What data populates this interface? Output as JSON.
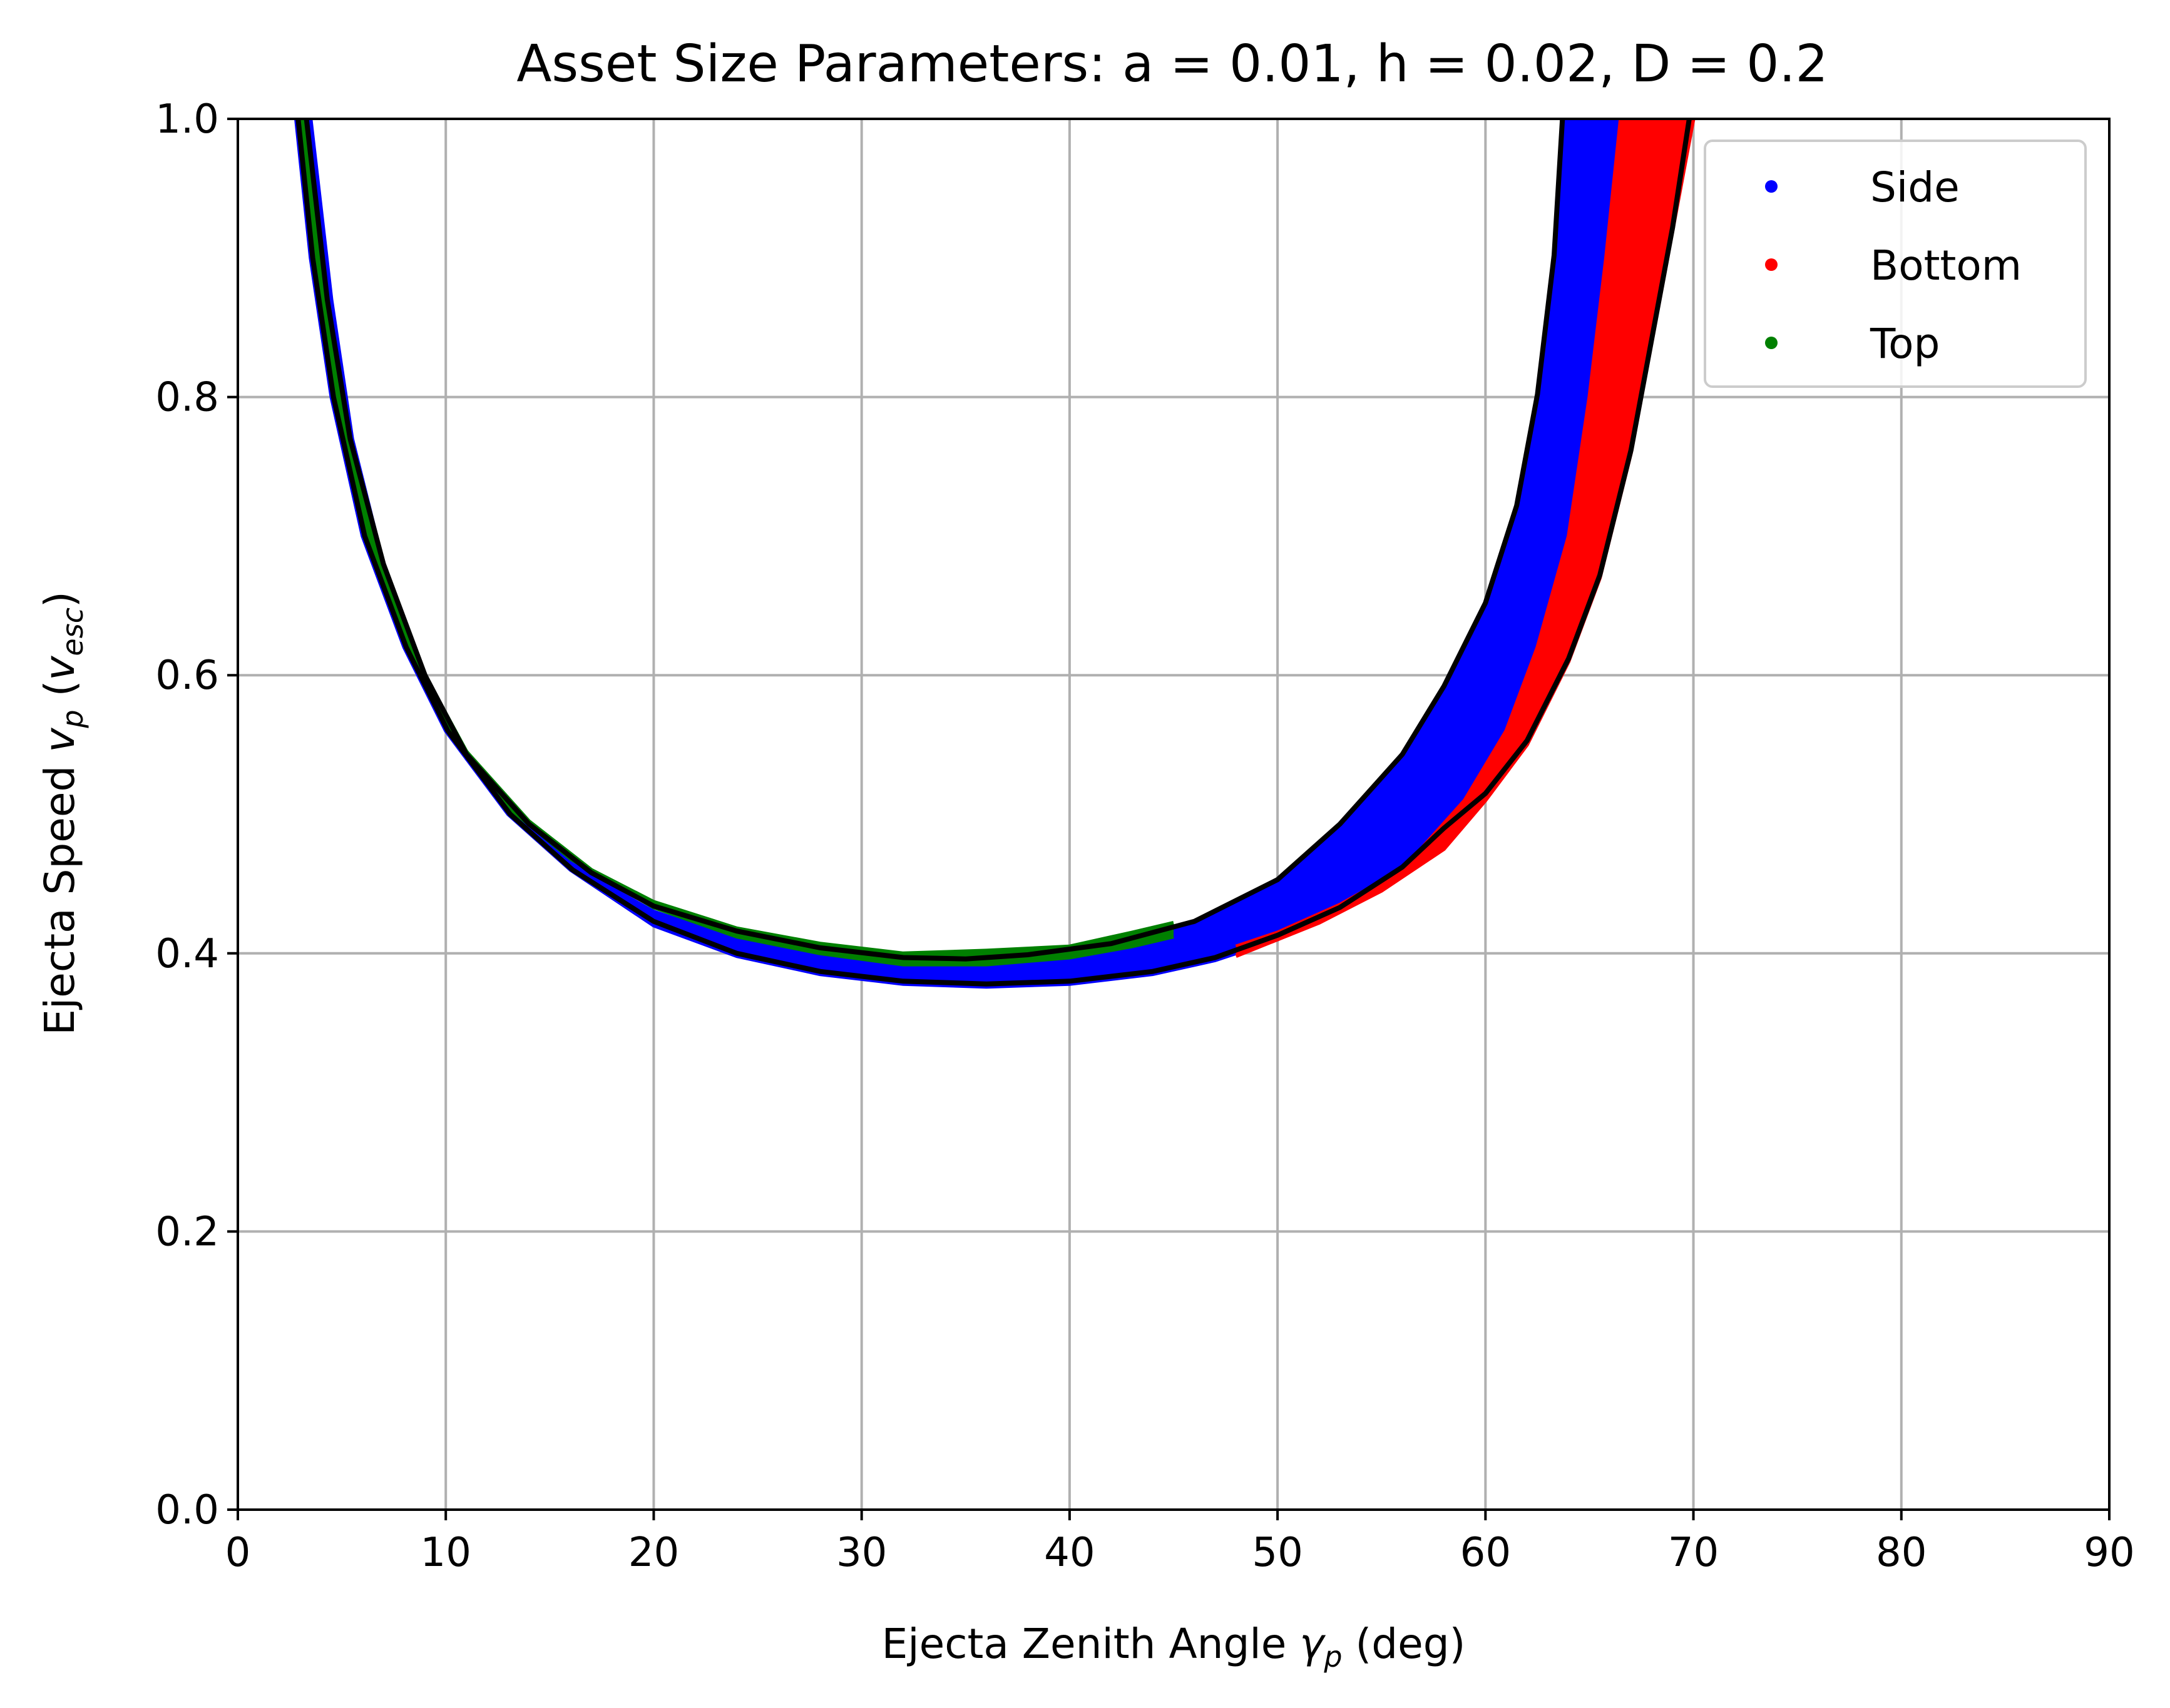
{
  "chart_data": {
    "type": "scatter",
    "title": "Asset Size Parameters: a = 0.01, h = 0.02, D = 0.2",
    "xlabel": {
      "prefix": "Ejecta Zenith Angle ",
      "symbol": "γ",
      "sub": "p",
      "suffix": " (deg)"
    },
    "ylabel": {
      "prefix": "Ejecta Speed ",
      "symbol": "v",
      "sub": "p",
      "mid": " (",
      "unit": "v",
      "unit_sub": "esc",
      "suffix": ")"
    },
    "xlim": [
      0,
      90
    ],
    "ylim": [
      0,
      1
    ],
    "xticks": [
      "0",
      "10",
      "20",
      "30",
      "40",
      "50",
      "60",
      "70",
      "80",
      "90"
    ],
    "yticks": [
      "0.0",
      "0.2",
      "0.4",
      "0.6",
      "0.8",
      "1.0"
    ],
    "grid": true,
    "legend_position": "upper right",
    "series": [
      {
        "name": "Side",
        "color": "#0000ff",
        "upper": [
          [
            3.5,
            1.0
          ],
          [
            4.5,
            0.87
          ],
          [
            5.5,
            0.77
          ],
          [
            7,
            0.68
          ],
          [
            9,
            0.6
          ],
          [
            11,
            0.54
          ],
          [
            14,
            0.49
          ],
          [
            17,
            0.455
          ],
          [
            20,
            0.43
          ],
          [
            24,
            0.41
          ],
          [
            28,
            0.398
          ],
          [
            32,
            0.393
          ],
          [
            35,
            0.393
          ],
          [
            38,
            0.397
          ],
          [
            42,
            0.405
          ],
          [
            46,
            0.42
          ],
          [
            50,
            0.45
          ],
          [
            53,
            0.49
          ],
          [
            56,
            0.54
          ],
          [
            58,
            0.59
          ],
          [
            60,
            0.65
          ],
          [
            61.5,
            0.72
          ],
          [
            62.5,
            0.8
          ],
          [
            63.3,
            0.9
          ],
          [
            63.8,
            1.0
          ]
        ],
        "lower": [
          [
            2.8,
            1.0
          ],
          [
            3.5,
            0.9
          ],
          [
            4.5,
            0.8
          ],
          [
            6,
            0.7
          ],
          [
            8,
            0.62
          ],
          [
            10,
            0.56
          ],
          [
            13,
            0.5
          ],
          [
            16,
            0.46
          ],
          [
            20,
            0.42
          ],
          [
            24,
            0.398
          ],
          [
            28,
            0.385
          ],
          [
            32,
            0.378
          ],
          [
            36,
            0.376
          ],
          [
            40,
            0.378
          ],
          [
            44,
            0.385
          ],
          [
            47,
            0.395
          ],
          [
            50,
            0.41
          ],
          [
            53,
            0.43
          ],
          [
            56,
            0.46
          ],
          [
            59,
            0.51
          ],
          [
            61,
            0.56
          ],
          [
            62.5,
            0.62
          ],
          [
            64,
            0.7
          ],
          [
            65,
            0.8
          ],
          [
            65.8,
            0.9
          ],
          [
            66.5,
            1.0
          ]
        ]
      },
      {
        "name": "Bottom",
        "color": "#ff0000",
        "upper": [
          [
            48,
            0.405
          ],
          [
            50,
            0.415
          ],
          [
            53,
            0.435
          ],
          [
            56,
            0.46
          ],
          [
            59,
            0.51
          ],
          [
            61,
            0.56
          ],
          [
            62.5,
            0.62
          ],
          [
            64,
            0.7
          ],
          [
            65,
            0.8
          ],
          [
            65.8,
            0.9
          ],
          [
            66.5,
            1.0
          ]
        ],
        "lower": [
          [
            48,
            0.398
          ],
          [
            52,
            0.422
          ],
          [
            55,
            0.445
          ],
          [
            58,
            0.475
          ],
          [
            60,
            0.51
          ],
          [
            62,
            0.55
          ],
          [
            64,
            0.61
          ],
          [
            65.5,
            0.67
          ],
          [
            67,
            0.76
          ],
          [
            68,
            0.84
          ],
          [
            69,
            0.92
          ],
          [
            70,
            1.0
          ]
        ]
      },
      {
        "name": "Top",
        "color": "#008000",
        "upper": [
          [
            3.2,
            1.0
          ],
          [
            4.2,
            0.87
          ],
          [
            5.3,
            0.77
          ],
          [
            7,
            0.68
          ],
          [
            9,
            0.6
          ],
          [
            11,
            0.545
          ],
          [
            14,
            0.495
          ],
          [
            17,
            0.46
          ],
          [
            20,
            0.437
          ],
          [
            24,
            0.418
          ],
          [
            28,
            0.407
          ],
          [
            32,
            0.4
          ],
          [
            36,
            0.402
          ],
          [
            40,
            0.405
          ],
          [
            43,
            0.415
          ],
          [
            45,
            0.422
          ]
        ],
        "lower": [
          [
            2.9,
            1.0
          ],
          [
            3.6,
            0.9
          ],
          [
            4.6,
            0.8
          ],
          [
            6,
            0.71
          ],
          [
            8,
            0.625
          ],
          [
            10,
            0.565
          ],
          [
            13,
            0.505
          ],
          [
            16,
            0.468
          ],
          [
            20,
            0.433
          ],
          [
            24,
            0.412
          ],
          [
            28,
            0.4
          ],
          [
            32,
            0.392
          ],
          [
            36,
            0.392
          ],
          [
            40,
            0.397
          ],
          [
            43,
            0.405
          ],
          [
            45,
            0.412
          ]
        ]
      }
    ],
    "boundary_curves": [
      [
        [
          3.3,
          1.0
        ],
        [
          4.3,
          0.87
        ],
        [
          5.4,
          0.77
        ],
        [
          7,
          0.68
        ],
        [
          9,
          0.6
        ],
        [
          11,
          0.543
        ],
        [
          14,
          0.493
        ],
        [
          17,
          0.458
        ],
        [
          20,
          0.434
        ],
        [
          24,
          0.416
        ],
        [
          28,
          0.404
        ],
        [
          32,
          0.397
        ],
        [
          35,
          0.396
        ],
        [
          38,
          0.399
        ],
        [
          42,
          0.407
        ],
        [
          46,
          0.423
        ],
        [
          50,
          0.453
        ],
        [
          53,
          0.493
        ],
        [
          56,
          0.543
        ],
        [
          58,
          0.592
        ],
        [
          60,
          0.652
        ],
        [
          61.5,
          0.722
        ],
        [
          62.5,
          0.802
        ],
        [
          63.3,
          0.902
        ],
        [
          63.7,
          1.0
        ]
      ],
      [
        [
          2.9,
          1.0
        ],
        [
          3.6,
          0.9
        ],
        [
          4.6,
          0.8
        ],
        [
          6.1,
          0.7
        ],
        [
          8.1,
          0.62
        ],
        [
          10.1,
          0.56
        ],
        [
          13.1,
          0.5
        ],
        [
          16.1,
          0.46
        ],
        [
          20,
          0.423
        ],
        [
          24,
          0.4
        ],
        [
          28,
          0.387
        ],
        [
          32,
          0.38
        ],
        [
          36,
          0.378
        ],
        [
          40,
          0.38
        ],
        [
          44,
          0.387
        ],
        [
          47,
          0.397
        ],
        [
          50,
          0.413
        ],
        [
          53,
          0.433
        ],
        [
          56,
          0.462
        ],
        [
          58,
          0.49
        ],
        [
          60,
          0.515
        ],
        [
          62,
          0.553
        ],
        [
          64,
          0.612
        ],
        [
          65.5,
          0.672
        ],
        [
          67,
          0.762
        ],
        [
          68,
          0.842
        ],
        [
          69,
          0.922
        ],
        [
          69.8,
          1.0
        ]
      ]
    ]
  }
}
